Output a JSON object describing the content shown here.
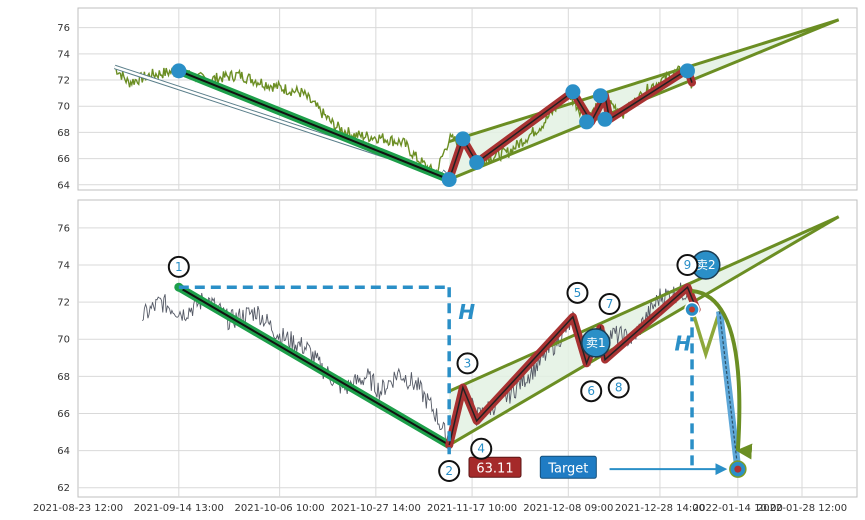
{
  "chart_data": [
    {
      "type": "line",
      "panel": "overview",
      "ylim": [
        63.6,
        77.5
      ],
      "yticks": [
        64,
        66,
        68,
        70,
        72,
        74,
        76
      ],
      "grid": true,
      "xlim": [
        "2021-08-23",
        "2022-02-09"
      ],
      "price_series": {
        "color": "#6b8e23",
        "anchors": [
          [
            "2021-08-31",
            73.0
          ],
          [
            "2021-09-03",
            71.8
          ],
          [
            "2021-09-08",
            72.4
          ],
          [
            "2021-09-14",
            72.7
          ],
          [
            "2021-09-20",
            72.0
          ],
          [
            "2021-09-27",
            72.4
          ],
          [
            "2021-10-04",
            71.6
          ],
          [
            "2021-10-11",
            71.0
          ],
          [
            "2021-10-18",
            68.5
          ],
          [
            "2021-10-22",
            67.8
          ],
          [
            "2021-10-28",
            67.6
          ],
          [
            "2021-11-02",
            67.2
          ],
          [
            "2021-11-05",
            66.0
          ],
          [
            "2021-11-09",
            64.8
          ],
          [
            "2021-11-12",
            67.5
          ],
          [
            "2021-11-15",
            67.2
          ],
          [
            "2021-11-18",
            65.8
          ],
          [
            "2021-11-25",
            66.5
          ],
          [
            "2021-12-02",
            68.5
          ],
          [
            "2021-12-08",
            71.0
          ],
          [
            "2021-12-12",
            69.0
          ],
          [
            "2021-12-16",
            70.5
          ],
          [
            "2021-12-20",
            69.5
          ],
          [
            "2021-12-26",
            71.5
          ],
          [
            "2021-12-31",
            72.5
          ],
          [
            "2022-01-03",
            72.9
          ],
          [
            "2022-01-04",
            71.6
          ]
        ]
      },
      "trend_arrow": {
        "from": [
          "2021-08-31",
          73.0
        ],
        "to": [
          "2021-11-12",
          64.6
        ]
      },
      "down_leg": {
        "from": [
          "2021-09-14",
          72.7
        ],
        "to": [
          "2021-11-12",
          64.4
        ]
      },
      "channel": {
        "lower": [
          [
            "2021-11-12",
            64.4
          ],
          [
            "2022-02-05",
            76.6
          ]
        ],
        "upper": [
          [
            "2021-11-12",
            67.3
          ],
          [
            "2022-02-05",
            76.6
          ]
        ]
      },
      "zigzag": [
        [
          "2021-11-12",
          64.4
        ],
        [
          "2021-11-15",
          67.5
        ],
        [
          "2021-11-18",
          65.7
        ],
        [
          "2021-12-09",
          71.1
        ],
        [
          "2021-12-13",
          68.8
        ],
        [
          "2021-12-16",
          70.8
        ],
        [
          "2021-12-17",
          69.0
        ],
        [
          "2022-01-03",
          72.8
        ],
        [
          "2022-01-04",
          71.8
        ]
      ],
      "markers": [
        [
          "2021-09-14",
          72.7
        ],
        [
          "2021-11-12",
          64.4
        ],
        [
          "2021-11-15",
          67.5
        ],
        [
          "2021-11-18",
          65.7
        ],
        [
          "2021-12-09",
          71.1
        ],
        [
          "2021-12-12",
          68.8
        ],
        [
          "2021-12-15",
          70.8
        ],
        [
          "2021-12-16",
          69.0
        ],
        [
          "2022-01-03",
          72.7
        ]
      ]
    },
    {
      "type": "line",
      "panel": "detail",
      "ylim": [
        61.5,
        77.5
      ],
      "yticks": [
        62,
        64,
        66,
        68,
        70,
        72,
        74,
        76
      ],
      "grid": true,
      "xlim": [
        "2021-08-23",
        "2022-02-09"
      ],
      "xticks": [
        [
          "2021-08-23",
          "2021-08-23 12:00"
        ],
        [
          "2021-09-14",
          "2021-09-14 13:00"
        ],
        [
          "2021-10-06",
          "2021-10-06 10:00"
        ],
        [
          "2021-10-27",
          "2021-10-27 14:00"
        ],
        [
          "2021-11-17",
          "2021-11-17 10:00"
        ],
        [
          "2021-12-08",
          "2021-12-08 09:00"
        ],
        [
          "2021-12-28",
          "2021-12-28 14:00"
        ],
        [
          "2022-01-14",
          "2022-01-14 10:00"
        ],
        [
          "2022-01-28",
          "2022-01-28 12:00"
        ]
      ],
      "price_series": {
        "color": "#555a66",
        "anchors": [
          [
            "2021-09-06",
            71.2
          ],
          [
            "2021-09-10",
            72.0
          ],
          [
            "2021-09-15",
            71.4
          ],
          [
            "2021-09-20",
            72.2
          ],
          [
            "2021-09-25",
            71.0
          ],
          [
            "2021-10-01",
            71.5
          ],
          [
            "2021-10-06",
            70.2
          ],
          [
            "2021-10-12",
            69.5
          ],
          [
            "2021-10-15",
            68.5
          ],
          [
            "2021-10-20",
            67.3
          ],
          [
            "2021-10-25",
            68.0
          ],
          [
            "2021-10-28",
            67.2
          ],
          [
            "2021-11-01",
            68.2
          ],
          [
            "2021-11-05",
            67.5
          ],
          [
            "2021-11-09",
            66.0
          ],
          [
            "2021-11-12",
            64.4
          ],
          [
            "2021-11-15",
            67.4
          ],
          [
            "2021-11-18",
            65.8
          ],
          [
            "2021-11-25",
            67.0
          ],
          [
            "2021-12-02",
            68.8
          ],
          [
            "2021-12-09",
            71.0
          ],
          [
            "2021-12-13",
            69.0
          ],
          [
            "2021-12-17",
            70.3
          ],
          [
            "2021-12-22",
            70.0
          ],
          [
            "2021-12-28",
            72.3
          ],
          [
            "2022-01-03",
            72.6
          ]
        ]
      },
      "down_leg": {
        "from": [
          "2021-09-14",
          72.8
        ],
        "to": [
          "2021-11-12",
          64.3
        ]
      },
      "channel": {
        "lower": [
          [
            "2021-11-12",
            64.3
          ],
          [
            "2022-02-05",
            76.6
          ]
        ],
        "upper": [
          [
            "2021-11-12",
            67.2
          ],
          [
            "2022-02-05",
            76.6
          ]
        ]
      },
      "zigzag": [
        [
          "2021-11-12",
          64.3
        ],
        [
          "2021-11-15",
          67.4
        ],
        [
          "2021-11-18",
          65.6
        ],
        [
          "2021-12-09",
          71.2
        ],
        [
          "2021-12-12",
          68.7
        ],
        [
          "2021-12-15",
          70.6
        ],
        [
          "2021-12-16",
          68.9
        ],
        [
          "2022-01-03",
          72.8
        ],
        [
          "2022-01-05",
          71.6
        ]
      ],
      "point_labels": [
        {
          "label": "1",
          "at": [
            "2021-09-14",
            73.9
          ]
        },
        {
          "label": "2",
          "at": [
            "2021-11-12",
            62.9
          ]
        },
        {
          "label": "3",
          "at": [
            "2021-11-16",
            68.7
          ]
        },
        {
          "label": "4",
          "at": [
            "2021-11-19",
            64.1
          ]
        },
        {
          "label": "5",
          "at": [
            "2021-12-10",
            72.5
          ]
        },
        {
          "label": "6",
          "at": [
            "2021-12-13",
            67.2
          ]
        },
        {
          "label": "7",
          "at": [
            "2021-12-17",
            71.9
          ]
        },
        {
          "label": "8",
          "at": [
            "2021-12-19",
            67.4
          ]
        },
        {
          "label": "9",
          "at": [
            "2022-01-03",
            74.0
          ]
        }
      ],
      "h_dashed": {
        "horizontal": [
          [
            "2021-09-14",
            72.8
          ],
          [
            "2021-11-12",
            72.8
          ]
        ],
        "vertical": [
          [
            "2021-11-12",
            72.8
          ],
          [
            "2021-11-12",
            63.8
          ]
        ],
        "label": "H",
        "label_at": [
          "2021-11-14",
          71.1
        ]
      },
      "h_projection": {
        "vertical": [
          [
            "2022-01-04",
            71.5
          ],
          [
            "2022-01-04",
            63.1
          ]
        ],
        "label": "H",
        "label_at": [
          "2022-01-02",
          69.4
        ]
      },
      "sell_points": [
        {
          "label": "卖1",
          "at": [
            "2021-12-14",
            69.8
          ]
        },
        {
          "label": "卖2",
          "at": [
            "2022-01-07",
            74.0
          ]
        }
      ],
      "projected_path": [
        [
          "2022-01-04",
          71.6
        ],
        [
          "2022-01-07",
          69.2
        ],
        [
          "2022-01-10",
          71.5
        ],
        [
          "2022-01-14",
          63.0
        ]
      ],
      "target_point": [
        "2022-01-14",
        63.0
      ],
      "entry_value": {
        "label": "63.11",
        "at": [
          "2021-11-22",
          63.1
        ],
        "color": "#a52a2a"
      },
      "target_badge": {
        "label": "Target",
        "at": [
          "2021-12-08",
          63.1
        ],
        "color": "#1f7cc4"
      },
      "target_arrow": {
        "from": [
          "2021-12-17",
          63.0
        ],
        "to": [
          "2022-01-13",
          63.0
        ]
      }
    }
  ],
  "colors": {
    "green_line": "#6b8e23",
    "down_leg": "#1d9f4a",
    "zigzag": "#a83232",
    "channel_fill": "#e3f1e3",
    "marker": "#2a8fc7",
    "dash": "#2a8fc7"
  }
}
